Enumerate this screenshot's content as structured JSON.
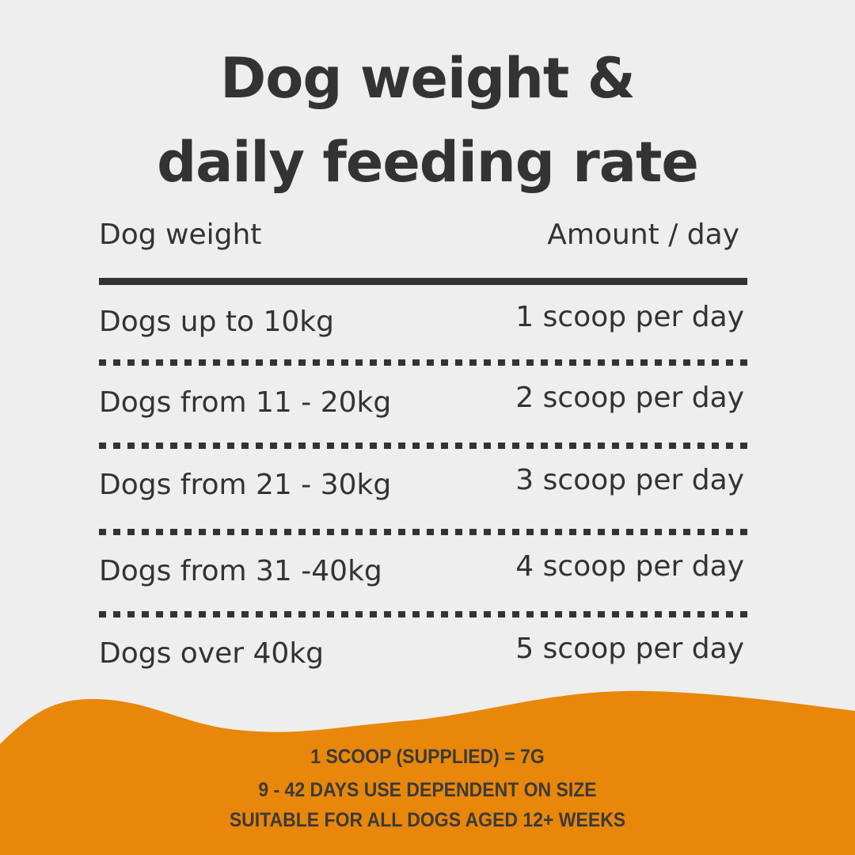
{
  "title_line1": "Dog weight &",
  "title_line2": "daily feeding rate",
  "table": {
    "headers": {
      "weight": "Dog weight",
      "amount": "Amount / day"
    },
    "rows": [
      {
        "weight": "Dogs up to 10kg",
        "amount": "1 scoop per day"
      },
      {
        "weight": "Dogs from 11 - 20kg",
        "amount": "2 scoop per day"
      },
      {
        "weight": "Dogs from 21 - 30kg",
        "amount": "3 scoop per day"
      },
      {
        "weight": "Dogs from 31 -40kg",
        "amount": "4 scoop per day"
      },
      {
        "weight": "Dogs over 40kg",
        "amount": "5 scoop per day"
      }
    ]
  },
  "footer": [
    "1 SCOOP (SUPPLIED) = 7G",
    "9 - 42 DAYS USE DEPENDENT ON SIZE",
    "SUITABLE FOR ALL DOGS AGED 12+ WEEKS"
  ],
  "colors": {
    "background": "#eeeeee",
    "text": "#333333",
    "accent": "#e9870a"
  }
}
